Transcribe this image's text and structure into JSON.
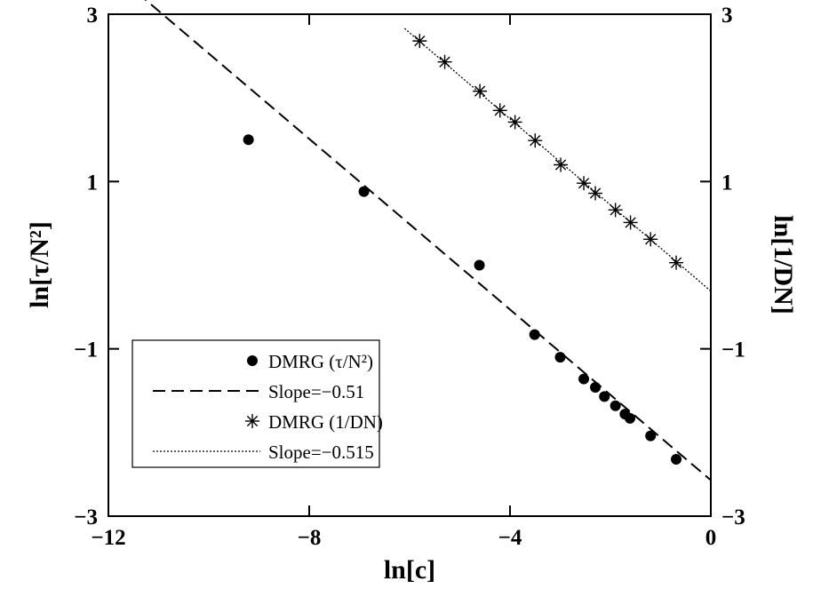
{
  "chart_data": {
    "type": "scatter",
    "xlabel": "ln[c]",
    "ylabel_left": "ln[τ/N²]",
    "ylabel_right": "ln[1/DN]",
    "xlim": [
      -12,
      0
    ],
    "ylim": [
      -3,
      3
    ],
    "x_ticks": [
      {
        "value": -12,
        "label": "−12"
      },
      {
        "value": -8,
        "label": "−8"
      },
      {
        "value": -4,
        "label": "−4"
      },
      {
        "value": 0,
        "label": "0"
      }
    ],
    "y_ticks_left": [
      {
        "value": 3,
        "label": "3"
      },
      {
        "value": 1,
        "label": "1"
      },
      {
        "value": -1,
        "label": "−1"
      },
      {
        "value": -3,
        "label": "−3"
      }
    ],
    "y_ticks_right": [
      {
        "value": 3,
        "label": "3"
      },
      {
        "value": 1,
        "label": "1"
      },
      {
        "value": -1,
        "label": "−1"
      },
      {
        "value": -3,
        "label": "−3"
      }
    ],
    "legend_position": "bottom-left",
    "series": [
      {
        "name": "DMRG (τ/N²)",
        "kind": "points",
        "marker": "filled-circle",
        "x": [
          -9.21,
          -6.91,
          -4.61,
          -3.51,
          -3.0,
          -2.53,
          -2.3,
          -2.12,
          -1.9,
          -1.71,
          -1.61,
          -1.2,
          -0.69
        ],
        "y": [
          1.5,
          0.88,
          0.0,
          -0.83,
          -1.1,
          -1.36,
          -1.46,
          -1.57,
          -1.68,
          -1.78,
          -1.83,
          -2.04,
          -2.32
        ]
      },
      {
        "name": "Slope=−0.51",
        "kind": "line",
        "style": "dashed",
        "x": [
          -12,
          0
        ],
        "y": [
          3.55,
          -2.57
        ]
      },
      {
        "name": "DMRG (1/DN)",
        "kind": "points",
        "marker": "asterisk",
        "x": [
          -5.8,
          -5.3,
          -4.6,
          -4.2,
          -3.9,
          -3.5,
          -2.99,
          -2.53,
          -2.3,
          -1.9,
          -1.6,
          -1.2,
          -0.69
        ],
        "y": [
          2.68,
          2.43,
          2.08,
          1.85,
          1.71,
          1.49,
          1.2,
          0.98,
          0.86,
          0.66,
          0.51,
          0.31,
          0.03
        ]
      },
      {
        "name": "Slope=−0.515",
        "kind": "line",
        "style": "dotted",
        "x": [
          -6.1,
          0
        ],
        "y": [
          2.83,
          -0.31
        ]
      }
    ]
  }
}
